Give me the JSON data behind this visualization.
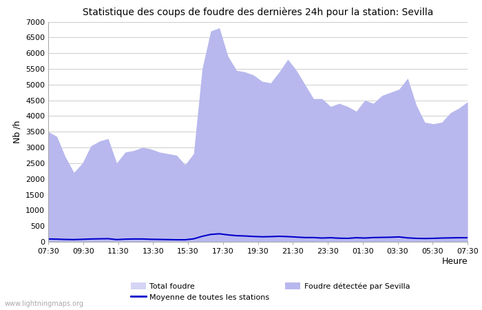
{
  "title": "Statistique des coups de foudre des dernières 24h pour la station: Sevilla",
  "xlabel": "Heure",
  "ylabel": "Nb /h",
  "xlim_labels": [
    "07:30",
    "09:30",
    "11:30",
    "13:30",
    "15:30",
    "17:30",
    "19:30",
    "21:30",
    "23:30",
    "01:30",
    "03:30",
    "05:30",
    "07:30"
  ],
  "ylim": [
    0,
    7000
  ],
  "yticks": [
    0,
    500,
    1000,
    1500,
    2000,
    2500,
    3000,
    3500,
    4000,
    4500,
    5000,
    5500,
    6000,
    6500,
    7000
  ],
  "bg_color": "#ffffff",
  "grid_color": "#cccccc",
  "fill_total_color": "#d4d4f4",
  "fill_sevilla_color": "#b8b8ee",
  "line_color": "#0000cc",
  "watermark": "www.lightningmaps.org",
  "total_foudre": [
    3500,
    3350,
    2700,
    2200,
    2500,
    3050,
    3200,
    3280,
    2500,
    2850,
    2900,
    3000,
    2950,
    2850,
    2800,
    2750,
    2450,
    2800,
    5500,
    6700,
    6800,
    5900,
    5450,
    5400,
    5300,
    5100,
    5050,
    5400,
    5800,
    5450,
    5000,
    4550,
    4550,
    4300,
    4400,
    4300,
    4150,
    4500,
    4400,
    4650,
    4750,
    4850,
    5200,
    4350,
    3800,
    3750,
    3800,
    4100,
    4250,
    4450
  ],
  "sevilla_foudre": [
    3500,
    3350,
    2700,
    2200,
    2500,
    3050,
    3200,
    3280,
    2500,
    2850,
    2900,
    3000,
    2950,
    2850,
    2800,
    2750,
    2450,
    2800,
    5500,
    6700,
    6800,
    5900,
    5450,
    5400,
    5300,
    5100,
    5050,
    5400,
    5800,
    5450,
    5000,
    4550,
    4550,
    4300,
    4400,
    4300,
    4150,
    4500,
    4400,
    4650,
    4750,
    4850,
    5200,
    4350,
    3800,
    3750,
    3800,
    4100,
    4250,
    4450
  ],
  "moyenne_stations": [
    90,
    85,
    75,
    70,
    80,
    90,
    95,
    100,
    70,
    85,
    90,
    90,
    80,
    75,
    70,
    65,
    65,
    95,
    175,
    235,
    255,
    220,
    195,
    185,
    170,
    160,
    165,
    175,
    165,
    150,
    135,
    135,
    120,
    130,
    115,
    110,
    130,
    120,
    135,
    140,
    145,
    155,
    125,
    110,
    105,
    110,
    120,
    125,
    130,
    130
  ]
}
